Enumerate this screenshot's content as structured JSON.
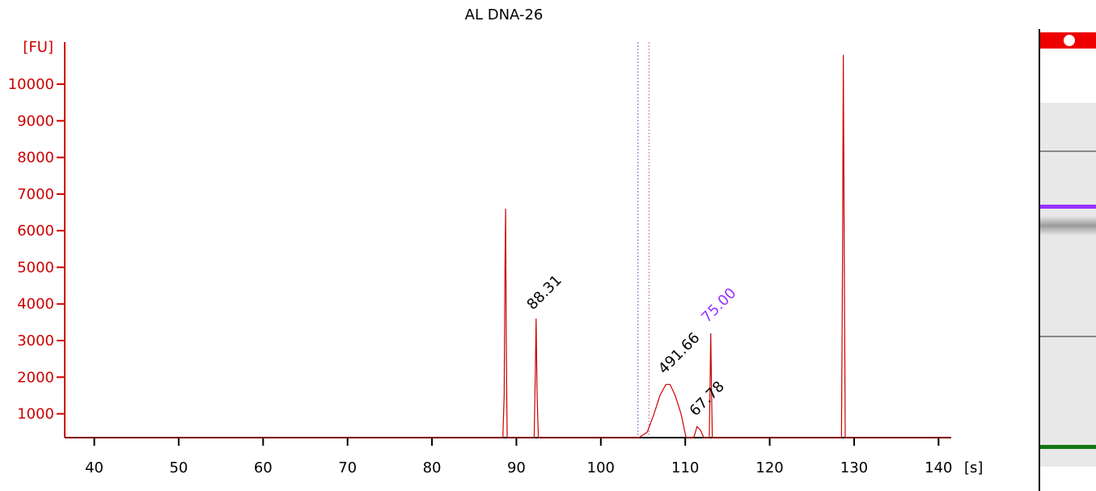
{
  "chart_data": {
    "type": "line",
    "title": "AL DNA-26",
    "ylabel": "[FU]",
    "xlabel": "[s]",
    "xlim": [
      36.5,
      141.5
    ],
    "ylim": [
      350,
      11150
    ],
    "x_ticks": [
      40,
      50,
      60,
      70,
      80,
      90,
      100,
      110,
      120,
      130,
      140
    ],
    "y_ticks": [
      1000,
      2000,
      3000,
      4000,
      5000,
      6000,
      7000,
      8000,
      9000,
      10000
    ],
    "grid": false,
    "series": [
      {
        "color": "#cc0000",
        "points": [
          [
            36.5,
            350
          ],
          [
            88.4,
            350
          ],
          [
            88.55,
            1500
          ],
          [
            88.65,
            5000
          ],
          [
            88.72,
            6600
          ],
          [
            88.8,
            3000
          ],
          [
            88.9,
            350
          ],
          [
            92.1,
            350
          ],
          [
            92.25,
            2200
          ],
          [
            92.33,
            3600
          ],
          [
            92.45,
            1500
          ],
          [
            92.6,
            350
          ],
          [
            104.5,
            350
          ],
          [
            105.5,
            500
          ],
          [
            106.3,
            1000
          ],
          [
            107.0,
            1500
          ],
          [
            107.7,
            1800
          ],
          [
            108.2,
            1800
          ],
          [
            108.8,
            1500
          ],
          [
            109.5,
            1000
          ],
          [
            110.1,
            350
          ],
          [
            111.0,
            350
          ],
          [
            111.4,
            650
          ],
          [
            111.8,
            550
          ],
          [
            112.2,
            350
          ],
          [
            112.85,
            350
          ],
          [
            112.95,
            2000
          ],
          [
            113.02,
            3200
          ],
          [
            113.12,
            1500
          ],
          [
            113.2,
            350
          ],
          [
            128.5,
            350
          ],
          [
            128.62,
            5000
          ],
          [
            128.72,
            10800
          ],
          [
            128.82,
            6000
          ],
          [
            128.95,
            350
          ],
          [
            141.5,
            350
          ]
        ]
      }
    ],
    "vertical_lines": [
      {
        "x": 104.4,
        "color": "#3333aa"
      },
      {
        "x": 105.7,
        "color": "#aa3399"
      }
    ],
    "annotations": [
      {
        "text": "88.31",
        "x": 92.33,
        "y": 3600,
        "color": "#000000"
      },
      {
        "text": "491.66",
        "x": 107.9,
        "y": 1850,
        "color": "#000000"
      },
      {
        "text": "67.78",
        "x": 111.6,
        "y": 700,
        "color": "#000000"
      },
      {
        "text": "75.00",
        "x": 113.0,
        "y": 3250,
        "color": "#9933ff"
      }
    ]
  },
  "gel": {
    "marker_color": "#ee0000",
    "bands": [
      {
        "color": "#888888",
        "position": 0.13
      },
      {
        "color": "#9933ff",
        "position": 0.28
      },
      {
        "color": "#888888",
        "position": 0.64
      },
      {
        "color": "#117711",
        "position": 0.94
      }
    ]
  }
}
